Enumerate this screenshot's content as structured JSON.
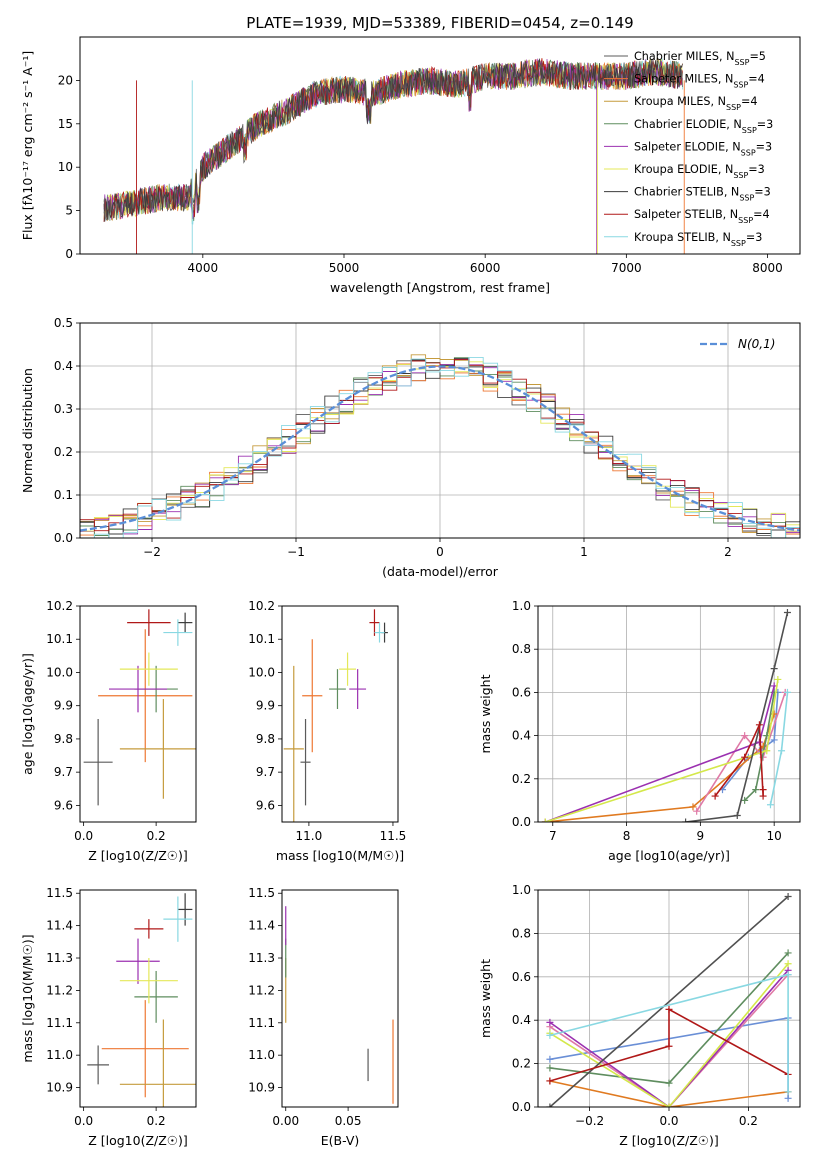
{
  "title": "PLATE=1939, MJD=53389, FIBERID=0454, z=0.149",
  "colors": [
    "#5b5b5b",
    "#ee7733",
    "#c59b3d",
    "#5f8d5f",
    "#9b30b0",
    "#e4e85a",
    "#3c3c3c",
    "#b01818",
    "#89d8e2"
  ],
  "chart_data": [
    {
      "type": "line",
      "name": "spectrum",
      "xlabel": "wavelength [Angstrom, rest frame]",
      "ylabel": "Flux [fλ10⁻¹⁷ erg cm⁻² s⁻¹ A⁻¹]",
      "xlim": [
        3130,
        8230
      ],
      "ylim": [
        0,
        25
      ],
      "xticks": [
        4000,
        5000,
        6000,
        7000,
        8000
      ],
      "yticks": [
        0,
        5,
        10,
        15,
        20
      ],
      "envelope": {
        "x": [
          3300,
          3500,
          3700,
          3900,
          4000,
          4200,
          4400,
          4600,
          4800,
          5000,
          5200,
          5400,
          5600,
          5800,
          6000,
          6200,
          6400,
          6600,
          6800,
          7000,
          7200,
          7400
        ],
        "y": [
          5.3,
          5.8,
          6.5,
          6.5,
          10.0,
          12.5,
          15.0,
          16.5,
          18.5,
          19.0,
          18.5,
          19.5,
          20.0,
          19.5,
          20.5,
          20.5,
          21.0,
          20.5,
          20.5,
          20.5,
          21.0,
          20.5
        ]
      },
      "legend": [
        "Chabrier MILES, N_SSP=5",
        "Salpeter MILES, N_SSP=4",
        "Kroupa MILES, N_SSP=4",
        "Chabrier ELODIE, N_SSP=3",
        "Salpeter ELODIE, N_SSP=3",
        "Kroupa ELODIE, N_SSP=3",
        "Chabrier STELIB, N_SSP=3",
        "Salpeter STELIB, N_SSP=4",
        "Kroupa STELIB, N_SSP=3"
      ]
    },
    {
      "type": "histogram",
      "name": "residuals",
      "xlabel": "(data-model)/error",
      "ylabel": "Normed distribution",
      "xlim": [
        -2.5,
        2.5
      ],
      "ylim": [
        0,
        0.5
      ],
      "xticks": [
        -2,
        -1,
        0,
        1,
        2
      ],
      "yticks": [
        0.0,
        0.1,
        0.2,
        0.3,
        0.4,
        0.5
      ],
      "legend": "N(0,1)"
    },
    {
      "type": "scatter",
      "name": "age-vs-Z",
      "xlabel": "Z [log10(Z/Z☉)]",
      "ylabel": "age  [log10(age/yr)]",
      "xlim": [
        -0.01,
        0.31
      ],
      "ylim": [
        9.55,
        10.2
      ],
      "xticks": [
        0.0,
        0.2
      ],
      "yticks": [
        9.6,
        9.7,
        9.8,
        9.9,
        10.0,
        10.1,
        10.2
      ],
      "points": [
        {
          "x": 0.04,
          "y": 9.73,
          "xerr": 0.04,
          "yerr": 0.13
        },
        {
          "x": 0.17,
          "y": 9.93,
          "xerr": 0.13,
          "yerr": 0.2
        },
        {
          "x": 0.22,
          "y": 9.77,
          "xerr": 0.12,
          "yerr": 0.15
        },
        {
          "x": 0.2,
          "y": 9.95,
          "xerr": 0.06,
          "yerr": 0.07
        },
        {
          "x": 0.15,
          "y": 9.95,
          "xerr": 0.08,
          "yerr": 0.07
        },
        {
          "x": 0.18,
          "y": 10.01,
          "xerr": 0.08,
          "yerr": 0.05
        },
        {
          "x": 0.28,
          "y": 10.15,
          "xerr": 0.02,
          "yerr": 0.03
        },
        {
          "x": 0.18,
          "y": 10.15,
          "xerr": 0.06,
          "yerr": 0.04
        },
        {
          "x": 0.26,
          "y": 10.12,
          "xerr": 0.04,
          "yerr": 0.04
        }
      ]
    },
    {
      "type": "scatter",
      "name": "age-vs-mass",
      "xlabel": "mass [log10(M/M☉)]",
      "xlim": [
        10.84,
        11.53
      ],
      "ylim": [
        9.55,
        10.2
      ],
      "xticks": [
        11.0,
        11.5
      ],
      "yticks": [
        9.6,
        9.7,
        9.8,
        9.9,
        10.0,
        10.1,
        10.2
      ],
      "points": [
        {
          "x": 10.98,
          "y": 9.73,
          "xerr": 0.03,
          "yerr": 0.13
        },
        {
          "x": 11.02,
          "y": 9.93,
          "xerr": 0.06,
          "yerr": 0.17
        },
        {
          "x": 10.91,
          "y": 9.77,
          "xerr": 0.06,
          "yerr": 0.25
        },
        {
          "x": 11.17,
          "y": 9.95,
          "xerr": 0.05,
          "yerr": 0.06
        },
        {
          "x": 11.29,
          "y": 9.95,
          "xerr": 0.05,
          "yerr": 0.06
        },
        {
          "x": 11.23,
          "y": 10.01,
          "xerr": 0.05,
          "yerr": 0.05
        },
        {
          "x": 11.45,
          "y": 10.12,
          "xerr": 0.02,
          "yerr": 0.03
        },
        {
          "x": 11.39,
          "y": 10.15,
          "xerr": 0.03,
          "yerr": 0.04
        },
        {
          "x": 11.42,
          "y": 10.12,
          "xerr": 0.03,
          "yerr": 0.03
        }
      ]
    },
    {
      "type": "line",
      "name": "weight-vs-age",
      "xlabel": "age  [log10(age/yr)]",
      "ylabel": "mass weight",
      "xlim": [
        6.8,
        10.35
      ],
      "ylim": [
        0,
        1.0
      ],
      "xticks": [
        7,
        8,
        9,
        10
      ],
      "yticks": [
        0.0,
        0.2,
        0.4,
        0.6,
        0.8,
        1.0
      ],
      "series": [
        {
          "x": [
            9.3,
            9.65,
            9.8,
            10.0,
            10.05
          ],
          "y": [
            0.15,
            0.3,
            0.33,
            0.38,
            0.6
          ]
        },
        {
          "x": [
            6.9,
            8.9,
            9.85,
            10.0
          ],
          "y": [
            0.0,
            0.07,
            0.35,
            0.5
          ]
        },
        {
          "x": [
            8.95,
            9.6,
            9.85,
            10.15
          ],
          "y": [
            0.05,
            0.4,
            0.3,
            0.6
          ]
        },
        {
          "x": [
            9.6,
            9.75,
            9.9,
            10.0
          ],
          "y": [
            0.1,
            0.15,
            0.4,
            0.6
          ]
        },
        {
          "x": [
            6.9,
            9.8,
            10.0
          ],
          "y": [
            0.0,
            0.37,
            0.63
          ]
        },
        {
          "x": [
            6.9,
            9.9,
            10.05
          ],
          "y": [
            0.0,
            0.33,
            0.66
          ]
        },
        {
          "x": [
            8.8,
            9.5,
            10.0,
            10.18
          ],
          "y": [
            0.0,
            0.03,
            0.71,
            0.97
          ]
        },
        {
          "x": [
            9.2,
            9.6,
            9.8,
            9.85,
            9.85
          ],
          "y": [
            0.12,
            0.3,
            0.45,
            0.12,
            0.15
          ]
        },
        {
          "x": [
            9.95,
            10.1,
            10.18
          ],
          "y": [
            0.08,
            0.33,
            0.6
          ]
        }
      ]
    },
    {
      "type": "scatter",
      "name": "mass-vs-Z",
      "xlabel": "Z [log10(Z/Z☉)]",
      "ylabel": "mass [log10(M/M☉)]",
      "xlim": [
        -0.01,
        0.31
      ],
      "ylim": [
        10.84,
        11.51
      ],
      "xticks": [
        0.0,
        0.2
      ],
      "yticks": [
        10.9,
        11.0,
        11.1,
        11.2,
        11.3,
        11.4,
        11.5
      ],
      "points": [
        {
          "x": 0.04,
          "y": 10.97,
          "xerr": 0.03,
          "yerr": 0.06
        },
        {
          "x": 0.17,
          "y": 11.02,
          "xerr": 0.12,
          "yerr": 0.15
        },
        {
          "x": 0.22,
          "y": 10.91,
          "xerr": 0.12,
          "yerr": 0.2
        },
        {
          "x": 0.2,
          "y": 11.18,
          "xerr": 0.06,
          "yerr": 0.08
        },
        {
          "x": 0.15,
          "y": 11.29,
          "xerr": 0.06,
          "yerr": 0.07
        },
        {
          "x": 0.18,
          "y": 11.23,
          "xerr": 0.08,
          "yerr": 0.07
        },
        {
          "x": 0.28,
          "y": 11.45,
          "xerr": 0.02,
          "yerr": 0.05
        },
        {
          "x": 0.18,
          "y": 11.39,
          "xerr": 0.04,
          "yerr": 0.03
        },
        {
          "x": 0.26,
          "y": 11.42,
          "xerr": 0.04,
          "yerr": 0.07
        }
      ]
    },
    {
      "type": "scatter",
      "name": "mass-vs-EBV",
      "xlabel": "E(B-V)",
      "xlim": [
        -0.003,
        0.09
      ],
      "ylim": [
        10.84,
        11.51
      ],
      "xticks": [
        0.0,
        0.05
      ],
      "yticks": [
        10.9,
        11.0,
        11.1,
        11.2,
        11.3,
        11.4,
        11.5
      ],
      "points": [
        {
          "x": 0.066,
          "y": 10.97,
          "yerr": 0.05
        },
        {
          "x": 0.086,
          "y": 10.98,
          "yerr": 0.13
        },
        {
          "x": 0.0,
          "y": 11.2,
          "yerr": 0.1
        },
        {
          "x": 0.0,
          "y": 11.3,
          "yerr": 0.06
        },
        {
          "x": 0.0,
          "y": 11.4,
          "yerr": 0.06
        }
      ]
    },
    {
      "type": "line",
      "name": "weight-vs-Z",
      "xlabel": "Z [log10(Z/Z☉)]",
      "ylabel": "mass weight",
      "xlim": [
        -0.33,
        0.33
      ],
      "ylim": [
        0,
        1.0
      ],
      "xticks": [
        -0.2,
        0.0,
        0.2
      ],
      "yticks": [
        0.0,
        0.2,
        0.4,
        0.6,
        0.8,
        1.0
      ],
      "series": [
        {
          "x": [
            -0.3,
            0.3,
            0.3
          ],
          "y": [
            0.22,
            0.41,
            0.04
          ]
        },
        {
          "x": [
            -0.3,
            0.0,
            0.3
          ],
          "y": [
            0.12,
            0.0,
            0.07
          ]
        },
        {
          "x": [
            -0.3,
            0.0,
            0.3
          ],
          "y": [
            0.37,
            0.0,
            0.61
          ]
        },
        {
          "x": [
            -0.3,
            0.0,
            0.3
          ],
          "y": [
            0.18,
            0.11,
            0.71
          ]
        },
        {
          "x": [
            -0.3,
            0.0,
            0.3
          ],
          "y": [
            0.39,
            0.0,
            0.63
          ]
        },
        {
          "x": [
            -0.3,
            0.0,
            0.3
          ],
          "y": [
            0.34,
            0.0,
            0.66
          ]
        },
        {
          "x": [
            -0.3,
            0.3
          ],
          "y": [
            0.0,
            0.97
          ]
        },
        {
          "x": [
            -0.3,
            0.0,
            0.0,
            0.3
          ],
          "y": [
            0.12,
            0.28,
            0.45,
            0.15
          ]
        },
        {
          "x": [
            -0.3,
            0.3,
            0.3
          ],
          "y": [
            0.33,
            0.61,
            0.07
          ]
        }
      ]
    }
  ]
}
